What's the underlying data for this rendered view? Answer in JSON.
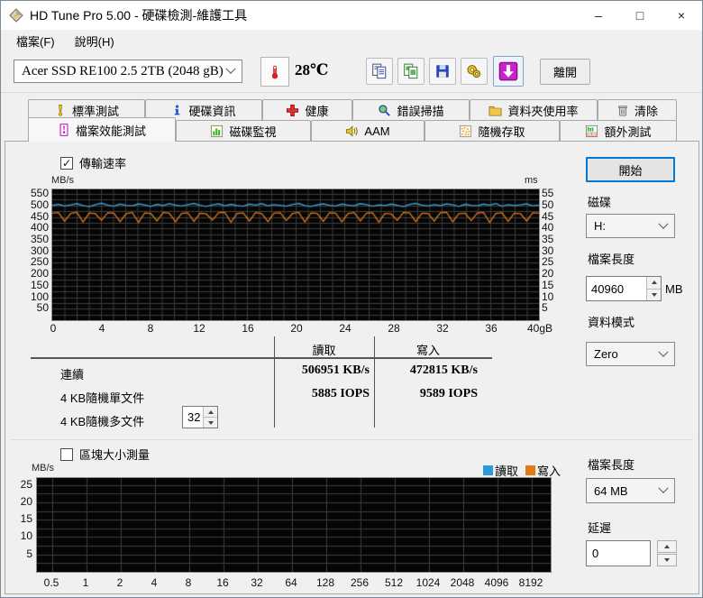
{
  "window": {
    "title": "HD Tune Pro  5.00 - 硬碟檢測-維護工具",
    "controls": {
      "minimize": "–",
      "maximize": "□",
      "close": "×"
    }
  },
  "menu": {
    "items": [
      {
        "label": "檔案(F)"
      },
      {
        "label": "說明(H)"
      }
    ]
  },
  "toolbar": {
    "drive_select": "Acer SSD RE100 2.5 2TB (2048 gB)",
    "temperature": "28℃",
    "icons": [
      "copy-text-icon",
      "copy-image-icon",
      "save-icon",
      "options-icon",
      "download-icon"
    ],
    "exit_label": "離開"
  },
  "tabs": {
    "row1": [
      {
        "label": "標準測試",
        "icon": "exclamation-icon"
      },
      {
        "label": "硬碟資訊",
        "icon": "info-icon"
      },
      {
        "label": "健康",
        "icon": "health-cross-icon"
      },
      {
        "label": "錯誤掃描",
        "icon": "search-icon"
      },
      {
        "label": "資料夾使用率",
        "icon": "folder-icon"
      },
      {
        "label": "清除",
        "icon": "trash-icon"
      }
    ],
    "row2": [
      {
        "label": "檔案效能測試",
        "icon": "file-benchmark-icon",
        "active": true
      },
      {
        "label": "磁碟監視",
        "icon": "disk-monitor-icon",
        "active": false
      },
      {
        "label": "AAM",
        "icon": "speaker-icon",
        "active": false
      },
      {
        "label": "隨機存取",
        "icon": "random-access-icon",
        "active": false
      },
      {
        "label": "額外測試",
        "icon": "extra-tests-icon",
        "active": false
      }
    ]
  },
  "file_benchmark": {
    "transfer_rate_checkbox": {
      "label": "傳輸速率",
      "checked": true
    },
    "block_size_checkbox": {
      "label": "區塊大小測量",
      "checked": false
    },
    "start_button": "開始",
    "disk_label": "磁碟",
    "disk_value": "H:",
    "file_length_label": "檔案長度",
    "file_length_value": "40960",
    "file_length_unit": "MB",
    "data_pattern_label": "資料模式",
    "data_pattern_value": "Zero",
    "block_file_length_label": "檔案長度",
    "block_file_length_value": "64 MB",
    "delay_label": "延遲",
    "delay_value": "0",
    "legend": {
      "read": "讀取",
      "write": "寫入",
      "read_color": "#2e9bd6",
      "write_color": "#e07b1a"
    },
    "results": {
      "read_header": "讀取",
      "write_header": "寫入",
      "rows": [
        {
          "label": "連續",
          "read": "506951 KB/s",
          "write": "472815 KB/s",
          "spinner": ""
        },
        {
          "label": "4 KB隨機單文件",
          "read": "5885 IOPS",
          "write": "9589 IOPS",
          "spinner": ""
        },
        {
          "label": "4 KB隨機多文件",
          "read": "",
          "write": "",
          "spinner": "32"
        }
      ]
    }
  },
  "chart_data": [
    {
      "type": "line",
      "title": "傳輸速率",
      "ylabel_left": "MB/s",
      "ylabel_right": "ms",
      "xlim": [
        0,
        40
      ],
      "ylim": [
        0,
        570
      ],
      "ylim_right": [
        0,
        57
      ],
      "grid_y_step": 25,
      "grid_x_divisions": 40,
      "grid_on": true,
      "x_ticks": [
        "0",
        "4",
        "8",
        "12",
        "16",
        "20",
        "24",
        "28",
        "32",
        "36",
        "40gB"
      ],
      "y_ticks_left": [
        550,
        500,
        450,
        400,
        350,
        300,
        250,
        200,
        150,
        100,
        50
      ],
      "y_ticks_right": [
        55,
        50,
        45,
        40,
        35,
        30,
        25,
        20,
        15,
        10,
        5
      ],
      "x_unit": "gB",
      "series": [
        {
          "name": "讀取",
          "color": "#3aa5dc",
          "avg_label": "506951 KB/s",
          "values": [
            501,
            505,
            498,
            503,
            508,
            500,
            495,
            504,
            510,
            502,
            497,
            506,
            501,
            499,
            507,
            503,
            496,
            505,
            500,
            508,
            502,
            498,
            504,
            509,
            501,
            496,
            503,
            507,
            499,
            505,
            500,
            497,
            506,
            502,
            508,
            499,
            504,
            501,
            497,
            505,
            509,
            500,
            496,
            503,
            507,
            501,
            498,
            506,
            502,
            499,
            508,
            504,
            497,
            503,
            500,
            506,
            501,
            495,
            505,
            509,
            502,
            498,
            504,
            500,
            507,
            503,
            496,
            505,
            501,
            499,
            506,
            502,
            508,
            497,
            504,
            500,
            503,
            507,
            499,
            502
          ]
        },
        {
          "name": "寫入",
          "color": "#e07b1a",
          "avg_label": "472815 KB/s",
          "values": [
            466,
            469,
            432,
            465,
            470,
            428,
            467,
            464,
            435,
            468,
            466,
            430,
            464,
            469,
            426,
            467,
            465,
            433,
            469,
            466,
            429,
            465,
            468,
            431,
            466,
            463,
            436,
            468,
            470,
            427,
            465,
            467,
            432,
            469,
            464,
            430,
            466,
            468,
            434,
            465,
            470,
            428,
            467,
            465,
            431,
            468,
            466,
            429,
            464,
            469,
            433,
            466,
            468,
            427,
            465,
            463,
            435,
            469,
            467,
            430,
            466,
            465,
            432,
            468,
            470,
            429,
            464,
            466,
            434,
            467,
            469,
            426,
            465,
            468,
            431,
            466,
            464,
            433,
            468,
            466
          ]
        }
      ]
    },
    {
      "type": "bar",
      "title": "區塊大小測量",
      "ylabel": "MB/s",
      "ylim": [
        0,
        27
      ],
      "grid_y_step": 2.5,
      "grid_on": true,
      "x_ticks": [
        "0.5",
        "1",
        "2",
        "4",
        "8",
        "16",
        "32",
        "64",
        "128",
        "256",
        "512",
        "1024",
        "2048",
        "4096",
        "8192"
      ],
      "y_ticks": [
        25,
        20,
        15,
        10,
        5
      ],
      "legend_position": "top-right",
      "series": [
        {
          "name": "讀取",
          "color": "#2e9bd6",
          "values": []
        },
        {
          "name": "寫入",
          "color": "#e07b1a",
          "values": []
        }
      ]
    }
  ]
}
